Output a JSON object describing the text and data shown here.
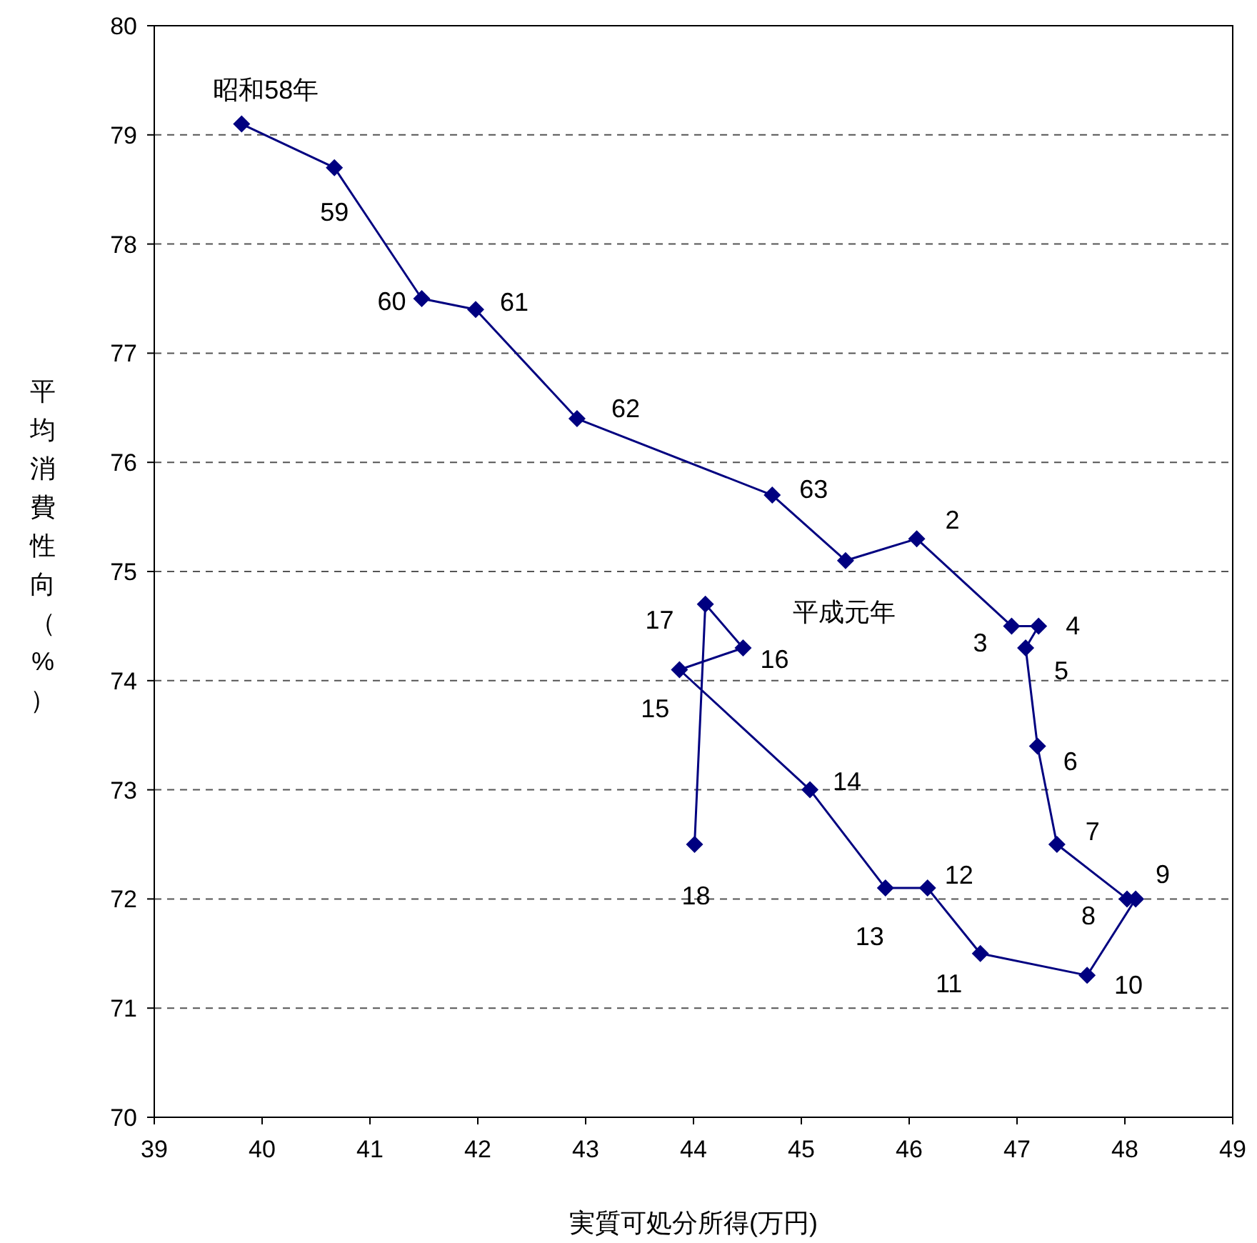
{
  "chart_data": {
    "type": "line",
    "xlabel": "実質可処分所得(万円)",
    "ylabel": "平均消費性向（%）",
    "x": [
      39.81,
      40.67,
      41.48,
      41.98,
      42.92,
      44.73,
      45.41,
      46.07,
      46.95,
      47.2,
      47.08,
      47.19,
      47.37,
      48.02,
      48.1,
      47.65,
      46.66,
      46.17,
      45.78,
      45.08,
      43.87,
      44.46,
      44.11,
      44.01
    ],
    "series": [
      {
        "color": "#000080",
        "values": [
          79.1,
          78.7,
          77.5,
          77.4,
          76.4,
          75.7,
          75.1,
          75.3,
          74.5,
          74.5,
          74.3,
          73.4,
          72.5,
          72.0,
          72.0,
          71.3,
          71.5,
          72.1,
          72.1,
          73.0,
          74.1,
          74.3,
          74.7,
          72.5
        ]
      }
    ],
    "annotations": [
      {
        "text": "昭和58年",
        "x": 39.81,
        "y": 79.1
      },
      {
        "text": "59",
        "x": 40.67,
        "y": 78.7
      },
      {
        "text": "60",
        "x": 41.48,
        "y": 77.5
      },
      {
        "text": "61",
        "x": 41.98,
        "y": 77.4
      },
      {
        "text": "62",
        "x": 42.92,
        "y": 76.4
      },
      {
        "text": "63",
        "x": 44.73,
        "y": 75.7
      },
      {
        "text": "平成元年",
        "x": 45.41,
        "y": 75.1
      },
      {
        "text": "2",
        "x": 46.07,
        "y": 75.3
      },
      {
        "text": "3",
        "x": 46.95,
        "y": 74.5
      },
      {
        "text": "4",
        "x": 47.2,
        "y": 74.5
      },
      {
        "text": "5",
        "x": 47.08,
        "y": 74.3
      },
      {
        "text": "6",
        "x": 47.19,
        "y": 73.4
      },
      {
        "text": "7",
        "x": 47.37,
        "y": 72.5
      },
      {
        "text": "8",
        "x": 48.02,
        "y": 72.0
      },
      {
        "text": "9",
        "x": 48.1,
        "y": 72.0
      },
      {
        "text": "10",
        "x": 47.65,
        "y": 71.3
      },
      {
        "text": "11",
        "x": 46.66,
        "y": 71.5
      },
      {
        "text": "12",
        "x": 46.17,
        "y": 72.1
      },
      {
        "text": "13",
        "x": 45.78,
        "y": 72.1
      },
      {
        "text": "14",
        "x": 45.08,
        "y": 73.0
      },
      {
        "text": "15",
        "x": 43.87,
        "y": 74.1
      },
      {
        "text": "16",
        "x": 44.46,
        "y": 74.3
      },
      {
        "text": "17",
        "x": 44.11,
        "y": 74.7
      },
      {
        "text": "18",
        "x": 44.01,
        "y": 72.5
      }
    ],
    "xlim": [
      39,
      49
    ],
    "xticks": [
      39,
      40,
      41,
      42,
      43,
      44,
      45,
      46,
      47,
      48,
      49
    ],
    "ylim": [
      70,
      80
    ],
    "yticks": [
      70,
      71,
      72,
      73,
      74,
      75,
      76,
      77,
      78,
      79,
      80
    ],
    "grid": "y",
    "marker": "diamond",
    "line_style": "solid"
  }
}
